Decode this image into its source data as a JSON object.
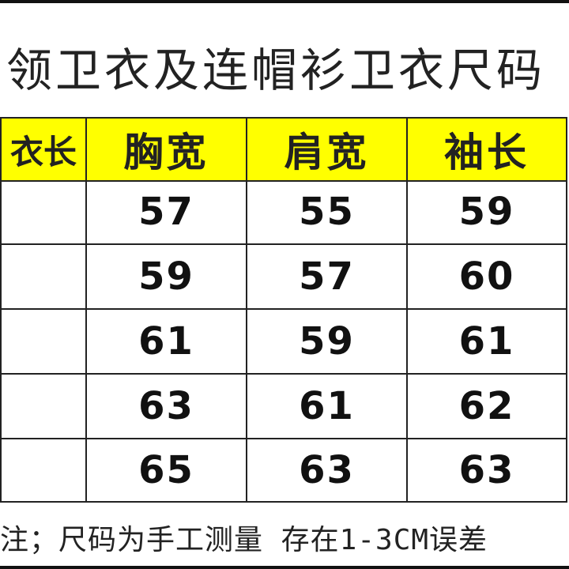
{
  "title": "领卫衣及连帽衫卫衣尺码",
  "table": {
    "headers": [
      "衣长",
      "胸宽",
      "肩宽",
      "袖长"
    ],
    "header_bg": "#ffff00",
    "rows": [
      [
        "",
        "57",
        "55",
        "59"
      ],
      [
        "",
        "59",
        "57",
        "60"
      ],
      [
        "",
        "61",
        "59",
        "61"
      ],
      [
        "",
        "63",
        "61",
        "62"
      ],
      [
        "",
        "65",
        "63",
        "63"
      ]
    ]
  },
  "note": "注；尺码为手工测量 存在1-3CM误差"
}
